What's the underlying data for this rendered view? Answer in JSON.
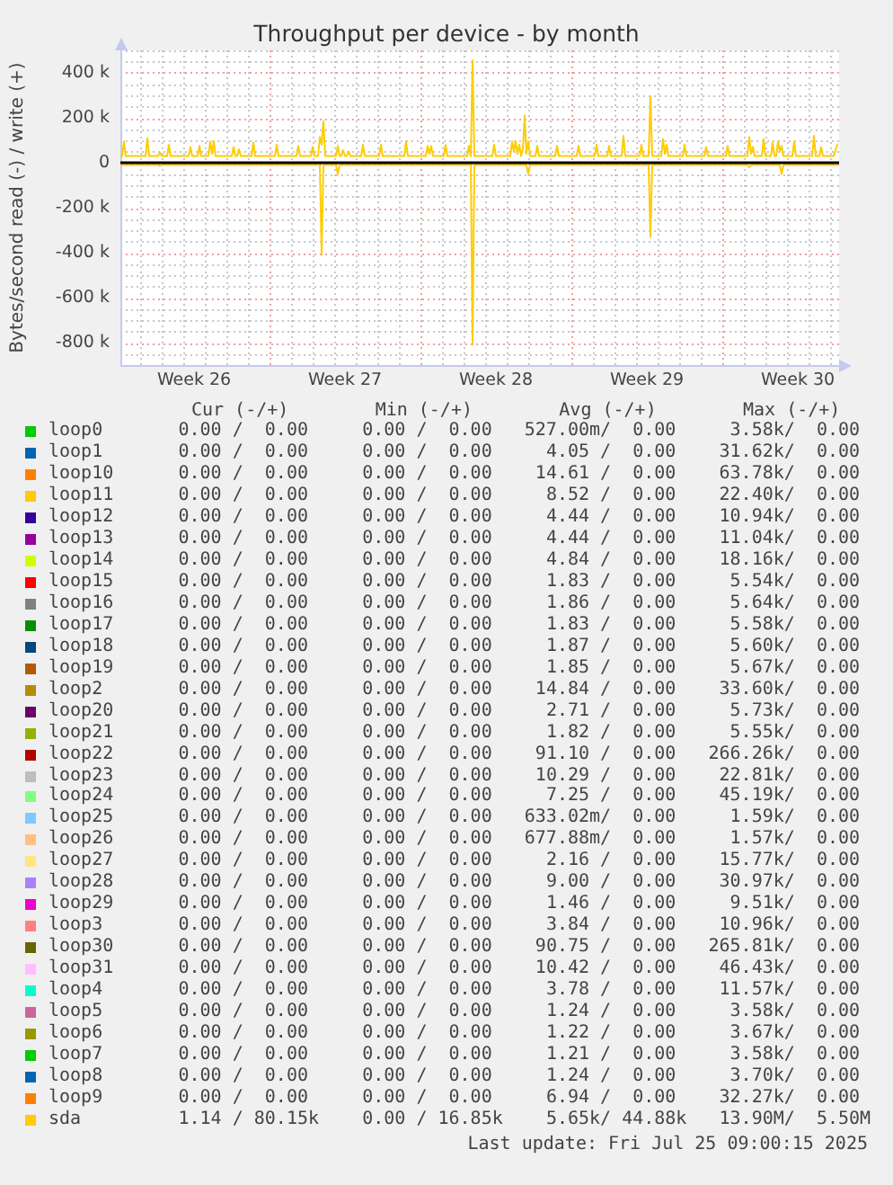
{
  "chart_data": {
    "type": "line",
    "title": "Throughput per device - by month",
    "ylabel": "Bytes/second read (-) / write (+)",
    "xlim": [
      "2025-06-22T02:00",
      "2025-07-25T10:00"
    ],
    "xticks": [
      {
        "value": "2025-06-23",
        "label": null
      },
      {
        "value": "2025-06-24",
        "label": null
      },
      {
        "value": "2025-06-25",
        "label": null
      },
      {
        "value": "2025-06-25T12:00",
        "label": "Week 26"
      },
      {
        "value": "2025-06-26",
        "label": null
      },
      {
        "value": "2025-06-27",
        "label": null
      },
      {
        "value": "2025-06-28",
        "label": null
      },
      {
        "value": "2025-06-29",
        "label": null
      },
      {
        "value": "2025-06-30",
        "label": null
      },
      {
        "value": "2025-07-01",
        "label": null
      },
      {
        "value": "2025-07-02",
        "label": null
      },
      {
        "value": "2025-07-02T12:00",
        "label": "Week 27"
      },
      {
        "value": "2025-07-03",
        "label": null
      },
      {
        "value": "2025-07-04",
        "label": null
      },
      {
        "value": "2025-07-05",
        "label": null
      },
      {
        "value": "2025-07-06",
        "label": null
      },
      {
        "value": "2025-07-07",
        "label": null
      },
      {
        "value": "2025-07-08",
        "label": null
      },
      {
        "value": "2025-07-09",
        "label": null
      },
      {
        "value": "2025-07-09T12:00",
        "label": "Week 28"
      },
      {
        "value": "2025-07-10",
        "label": null
      },
      {
        "value": "2025-07-11",
        "label": null
      },
      {
        "value": "2025-07-12",
        "label": null
      },
      {
        "value": "2025-07-13",
        "label": null
      },
      {
        "value": "2025-07-14",
        "label": null
      },
      {
        "value": "2025-07-15",
        "label": null
      },
      {
        "value": "2025-07-16",
        "label": null
      },
      {
        "value": "2025-07-16T12:00",
        "label": "Week 29"
      },
      {
        "value": "2025-07-17",
        "label": null
      },
      {
        "value": "2025-07-18",
        "label": null
      },
      {
        "value": "2025-07-19",
        "label": null
      },
      {
        "value": "2025-07-20",
        "label": null
      },
      {
        "value": "2025-07-21",
        "label": null
      },
      {
        "value": "2025-07-22",
        "label": null
      },
      {
        "value": "2025-07-23",
        "label": null
      },
      {
        "value": "2025-07-23T12:00",
        "label": "Week 30"
      },
      {
        "value": "2025-07-24",
        "label": null
      },
      {
        "value": "2025-07-25",
        "label": null
      }
    ],
    "ylim": [
      -900000,
      500000
    ],
    "yticks": [
      {
        "value": -900000,
        "label": null
      },
      {
        "value": -850000,
        "label": null
      },
      {
        "value": -800000,
        "label": "-800 k"
      },
      {
        "value": -750000,
        "label": null
      },
      {
        "value": -700000,
        "label": null
      },
      {
        "value": -650000,
        "label": null
      },
      {
        "value": -600000,
        "label": "-600 k"
      },
      {
        "value": -550000,
        "label": null
      },
      {
        "value": -500000,
        "label": null
      },
      {
        "value": -450000,
        "label": null
      },
      {
        "value": -400000,
        "label": "-400 k"
      },
      {
        "value": -350000,
        "label": null
      },
      {
        "value": -300000,
        "label": null
      },
      {
        "value": -250000,
        "label": null
      },
      {
        "value": -200000,
        "label": "-200 k"
      },
      {
        "value": -150000,
        "label": null
      },
      {
        "value": -100000,
        "label": null
      },
      {
        "value": -50000,
        "label": null
      },
      0,
      {
        "value": 50000,
        "label": null
      },
      {
        "value": 100000,
        "label": null
      },
      {
        "value": 150000,
        "label": null
      },
      {
        "value": 200000,
        "label": "200 k"
      },
      {
        "value": 250000,
        "label": null
      },
      {
        "value": 300000,
        "label": null
      },
      {
        "value": 350000,
        "label": null
      },
      {
        "value": 400000,
        "label": "400 k"
      },
      {
        "value": 450000,
        "label": null
      },
      {
        "value": 500000,
        "label": null
      }
    ],
    "grid": true,
    "legend": "bottom",
    "ref_lines": [
      {
        "axis": "y",
        "value": 0,
        "color": "#000000"
      }
    ],
    "series": [
      {
        "name": "loop0",
        "color": "#00cc00"
      },
      {
        "name": "loop1",
        "color": "#0066b3"
      },
      {
        "name": "loop10",
        "color": "#ff8000"
      },
      {
        "name": "loop11",
        "color": "#ffcc00"
      },
      {
        "name": "loop12",
        "color": "#330099"
      },
      {
        "name": "loop13",
        "color": "#990099"
      },
      {
        "name": "loop14",
        "color": "#ccff00"
      },
      {
        "name": "loop15",
        "color": "#ff0000"
      },
      {
        "name": "loop16",
        "color": "#808080"
      },
      {
        "name": "loop17",
        "color": "#008f00"
      },
      {
        "name": "loop18",
        "color": "#00487d"
      },
      {
        "name": "loop19",
        "color": "#b35a00"
      },
      {
        "name": "loop2",
        "color": "#b38f00"
      },
      {
        "name": "loop20",
        "color": "#6b006b"
      },
      {
        "name": "loop21",
        "color": "#8fb300"
      },
      {
        "name": "loop22",
        "color": "#b30000"
      },
      {
        "name": "loop23",
        "color": "#bebebe"
      },
      {
        "name": "loop24",
        "color": "#80ff80"
      },
      {
        "name": "loop25",
        "color": "#80c9ff"
      },
      {
        "name": "loop26",
        "color": "#ffc080"
      },
      {
        "name": "loop27",
        "color": "#ffe680"
      },
      {
        "name": "loop28",
        "color": "#aa80ff"
      },
      {
        "name": "loop29",
        "color": "#ee00cc"
      },
      {
        "name": "loop3",
        "color": "#ff8080"
      },
      {
        "name": "loop30",
        "color": "#666600"
      },
      {
        "name": "loop31",
        "color": "#ffbfff"
      },
      {
        "name": "loop4",
        "color": "#00ffcc"
      },
      {
        "name": "loop5",
        "color": "#cc6699"
      },
      {
        "name": "loop6",
        "color": "#999900"
      },
      {
        "name": "loop7",
        "color": "#00cc00"
      },
      {
        "name": "loop8",
        "color": "#0066b3"
      },
      {
        "name": "loop9",
        "color": "#ff8000"
      },
      {
        "name": "sda",
        "color": "#ffcc00",
        "x": [
          "2025-06-22T02:00",
          "2025-06-22T04:00",
          "2025-06-22T06:00",
          "2025-06-22T08:00",
          "2025-06-23T06:00",
          "2025-06-23T08:00",
          "2025-06-23T10:00",
          "2025-06-23T20:00",
          "2025-06-23T22:00",
          "2025-06-24T00:00",
          "2025-06-24T06:00",
          "2025-06-24T08:00",
          "2025-06-24T10:00",
          "2025-06-25T06:00",
          "2025-06-25T08:00",
          "2025-06-25T10:00",
          "2025-06-25T16:00",
          "2025-06-25T18:00",
          "2025-06-25T20:00",
          "2025-06-26T04:00",
          "2025-06-26T06:00",
          "2025-06-26T08:00",
          "2025-06-26T10:00",
          "2025-06-26T12:00",
          "2025-06-27T06:00",
          "2025-06-27T08:00",
          "2025-06-27T10:00",
          "2025-06-27T12:00",
          "2025-06-27T14:00",
          "2025-06-27T16:00",
          "2025-06-28T04:00",
          "2025-06-28T06:00",
          "2025-06-28T08:00",
          "2025-06-29T06:00",
          "2025-06-29T08:00",
          "2025-06-29T10:00",
          "2025-06-30T06:00",
          "2025-06-30T08:00",
          "2025-06-30T10:00",
          "2025-06-30T22:00",
          "2025-07-01T00:00",
          "2025-07-01T02:00",
          "2025-07-01T06:00",
          "2025-07-01T08:00",
          "2025-07-01T10:00",
          "2025-07-01T12:00",
          "2025-07-01T14:00",
          "2025-07-02T02:00",
          "2025-07-02T04:00",
          "2025-07-02T06:00",
          "2025-07-02T08:00",
          "2025-07-02T10:00",
          "2025-07-02T12:00",
          "2025-07-02T14:00",
          "2025-07-02T16:00",
          "2025-07-02T18:00",
          "2025-07-03T06:00",
          "2025-07-03T08:00",
          "2025-07-03T10:00",
          "2025-07-04T02:00",
          "2025-07-04T04:00",
          "2025-07-04T06:00",
          "2025-07-05T06:00",
          "2025-07-05T08:00",
          "2025-07-05T10:00",
          "2025-07-06T06:00",
          "2025-07-06T08:00",
          "2025-07-06T10:00",
          "2025-07-06T12:00",
          "2025-07-06T14:00",
          "2025-07-07T02:00",
          "2025-07-07T04:00",
          "2025-07-07T06:00",
          "2025-07-08T04:00",
          "2025-07-08T06:00",
          "2025-07-08T08:00",
          "2025-07-08T10:00",
          "2025-07-08T12:00",
          "2025-07-09T08:00",
          "2025-07-09T10:00",
          "2025-07-09T12:00",
          "2025-07-10T04:00",
          "2025-07-10T06:00",
          "2025-07-10T08:00",
          "2025-07-10T10:00",
          "2025-07-10T12:00",
          "2025-07-10T14:00",
          "2025-07-10T16:00",
          "2025-07-10T18:00",
          "2025-07-10T20:00",
          "2025-07-10T22:00",
          "2025-07-11T00:00",
          "2025-07-11T02:00",
          "2025-07-11T08:00",
          "2025-07-11T10:00",
          "2025-07-11T12:00",
          "2025-07-12T06:00",
          "2025-07-12T08:00",
          "2025-07-12T10:00",
          "2025-07-13T06:00",
          "2025-07-13T08:00",
          "2025-07-13T10:00",
          "2025-07-14T02:00",
          "2025-07-14T04:00",
          "2025-07-14T06:00",
          "2025-07-14T16:00",
          "2025-07-14T18:00",
          "2025-07-14T20:00",
          "2025-07-15T08:00",
          "2025-07-15T10:00",
          "2025-07-15T12:00",
          "2025-07-16T04:00",
          "2025-07-16T06:00",
          "2025-07-16T08:00",
          "2025-07-16T14:00",
          "2025-07-16T16:00",
          "2025-07-16T18:00",
          "2025-07-17T04:00",
          "2025-07-17T06:00",
          "2025-07-17T08:00",
          "2025-07-17T10:00",
          "2025-07-17T12:00",
          "2025-07-18T04:00",
          "2025-07-18T06:00",
          "2025-07-18T08:00",
          "2025-07-19T04:00",
          "2025-07-19T06:00",
          "2025-07-19T08:00",
          "2025-07-20T04:00",
          "2025-07-20T06:00",
          "2025-07-20T08:00",
          "2025-07-21T04:00",
          "2025-07-21T06:00",
          "2025-07-21T08:00",
          "2025-07-21T10:00",
          "2025-07-21T12:00",
          "2025-07-21T20:00",
          "2025-07-21T22:00",
          "2025-07-22T00:00",
          "2025-07-22T06:00",
          "2025-07-22T08:00",
          "2025-07-22T10:00",
          "2025-07-22T12:00",
          "2025-07-22T14:00",
          "2025-07-22T16:00",
          "2025-07-22T18:00",
          "2025-07-22T20:00",
          "2025-07-23T06:00",
          "2025-07-23T08:00",
          "2025-07-23T10:00",
          "2025-07-24T04:00",
          "2025-07-24T06:00",
          "2025-07-24T08:00",
          "2025-07-24T12:00",
          "2025-07-24T14:00",
          "2025-07-24T16:00",
          "2025-07-25T04:00",
          "2025-07-25T08:00"
        ],
        "values": [
          30000,
          30000,
          95000,
          30000,
          30000,
          110000,
          30000,
          30000,
          45000,
          30000,
          30000,
          80000,
          30000,
          30000,
          70000,
          30000,
          30000,
          75000,
          30000,
          30000,
          95000,
          40000,
          95000,
          30000,
          30000,
          70000,
          30000,
          30000,
          60000,
          30000,
          30000,
          90000,
          30000,
          30000,
          80000,
          30000,
          30000,
          75000,
          30000,
          30000,
          70000,
          30000,
          30000,
          115000,
          80000,
          185000,
          30000,
          30000,
          75000,
          30000,
          30000,
          55000,
          30000,
          30000,
          50000,
          30000,
          30000,
          80000,
          30000,
          30000,
          80000,
          30000,
          30000,
          95000,
          30000,
          30000,
          75000,
          40000,
          75000,
          30000,
          30000,
          80000,
          30000,
          30000,
          75000,
          30000,
          455000,
          30000,
          30000,
          80000,
          30000,
          30000,
          95000,
          50000,
          95000,
          40000,
          80000,
          30000,
          60000,
          210000,
          40000,
          95000,
          30000,
          30000,
          75000,
          30000,
          30000,
          75000,
          30000,
          30000,
          75000,
          30000,
          30000,
          80000,
          30000,
          30000,
          75000,
          30000,
          30000,
          120000,
          30000,
          30000,
          80000,
          30000,
          30000,
          295000,
          30000,
          30000,
          105000,
          40000,
          80000,
          30000,
          30000,
          80000,
          30000,
          30000,
          70000,
          30000,
          30000,
          75000,
          30000,
          30000,
          115000,
          40000,
          70000,
          30000,
          30000,
          105000,
          30000,
          30000,
          90000,
          30000,
          30000,
          95000,
          50000,
          75000,
          30000,
          30000,
          95000,
          30000,
          30000,
          120000,
          30000,
          30000,
          70000,
          30000,
          30000,
          80000
        ]
      },
      {
        "color": "#ffcc00",
        "x": [
          "2025-06-22T02:00",
          "2025-06-23T20:00",
          "2025-06-23T22:00",
          "2025-06-24T00:00",
          "2025-07-01T08:00",
          "2025-07-01T10:00",
          "2025-07-01T12:00",
          "2025-07-02T02:00",
          "2025-07-02T04:00",
          "2025-07-02T06:00",
          "2025-07-08T08:00",
          "2025-07-08T10:00",
          "2025-07-08T12:00",
          "2025-07-10T22:00",
          "2025-07-11T00:00",
          "2025-07-11T02:00",
          "2025-07-16T14:00",
          "2025-07-16T16:00",
          "2025-07-16T18:00",
          "2025-07-21T04:00",
          "2025-07-21T06:00",
          "2025-07-21T08:00",
          "2025-07-22T16:00",
          "2025-07-22T18:00",
          "2025-07-22T20:00",
          "2025-07-25T08:00"
        ],
        "values": [
          -10000,
          -10000,
          -15000,
          -10000,
          -10000,
          -410000,
          -10000,
          -10000,
          -50000,
          -10000,
          -10000,
          -810000,
          -10000,
          -10000,
          -50000,
          -10000,
          -10000,
          -330000,
          -10000,
          -10000,
          -20000,
          -10000,
          -10000,
          -50000,
          -10000,
          -10000
        ]
      }
    ],
    "annotations": [
      "Cur (-/+)",
      "Min (-/+)",
      "Avg (-/+)",
      "Max (-/+)",
      "0.00 /  0.00",
      "0.00 /  0.00",
      "527.00m/  0.00",
      "3.58k/  0.00",
      "0.00 /  0.00",
      "0.00 /  0.00",
      "4.05 /  0.00",
      "31.62k/  0.00",
      "0.00 /  0.00",
      "0.00 /  0.00",
      "14.61 /  0.00",
      "63.78k/  0.00",
      "0.00 /  0.00",
      "0.00 /  0.00",
      "8.52 /  0.00",
      "22.40k/  0.00",
      "0.00 /  0.00",
      "0.00 /  0.00",
      "4.44 /  0.00",
      "10.94k/  0.00",
      "0.00 /  0.00",
      "0.00 /  0.00",
      "4.44 /  0.00",
      "11.04k/  0.00",
      "0.00 /  0.00",
      "0.00 /  0.00",
      "4.84 /  0.00",
      "18.16k/  0.00",
      "0.00 /  0.00",
      "0.00 /  0.00",
      "1.83 /  0.00",
      "5.54k/  0.00",
      "0.00 /  0.00",
      "0.00 /  0.00",
      "1.86 /  0.00",
      "5.64k/  0.00",
      "0.00 /  0.00",
      "0.00 /  0.00",
      "1.83 /  0.00",
      "5.58k/  0.00",
      "0.00 /  0.00",
      "0.00 /  0.00",
      "1.87 /  0.00",
      "5.60k/  0.00",
      "0.00 /  0.00",
      "0.00 /  0.00",
      "1.85 /  0.00",
      "5.67k/  0.00",
      "0.00 /  0.00",
      "0.00 /  0.00",
      "14.84 /  0.00",
      "33.60k/  0.00",
      "0.00 /  0.00",
      "0.00 /  0.00",
      "2.71 /  0.00",
      "5.73k/  0.00",
      "0.00 /  0.00",
      "0.00 /  0.00",
      "1.82 /  0.00",
      "5.55k/  0.00",
      "0.00 /  0.00",
      "0.00 /  0.00",
      "91.10 /  0.00",
      "266.26k/  0.00",
      "0.00 /  0.00",
      "0.00 /  0.00",
      "10.29 /  0.00",
      "22.81k/  0.00",
      "0.00 /  0.00",
      "0.00 /  0.00",
      "7.25 /  0.00",
      "45.19k/  0.00",
      "0.00 /  0.00",
      "0.00 /  0.00",
      "633.02m/  0.00",
      "1.59k/  0.00",
      "0.00 /  0.00",
      "0.00 /  0.00",
      "677.88m/  0.00",
      "1.57k/  0.00",
      "0.00 /  0.00",
      "0.00 /  0.00",
      "2.16 /  0.00",
      "15.77k/  0.00",
      "0.00 /  0.00",
      "0.00 /  0.00",
      "9.00 /  0.00",
      "30.97k/  0.00",
      "0.00 /  0.00",
      "0.00 /  0.00",
      "1.46 /  0.00",
      "9.51k/  0.00",
      "0.00 /  0.00",
      "0.00 /  0.00",
      "3.84 /  0.00",
      "10.96k/  0.00",
      "0.00 /  0.00",
      "0.00 /  0.00",
      "90.75 /  0.00",
      "265.81k/  0.00",
      "0.00 /  0.00",
      "0.00 /  0.00",
      "10.42 /  0.00",
      "46.43k/  0.00",
      "0.00 /  0.00",
      "0.00 /  0.00",
      "3.78 /  0.00",
      "11.57k/  0.00",
      "0.00 /  0.00",
      "0.00 /  0.00",
      "1.24 /  0.00",
      "3.58k/  0.00",
      "0.00 /  0.00",
      "0.00 /  0.00",
      "1.22 /  0.00",
      "3.67k/  0.00",
      "0.00 /  0.00",
      "0.00 /  0.00",
      "1.21 /  0.00",
      "3.58k/  0.00",
      "0.00 /  0.00",
      "0.00 /  0.00",
      "1.24 /  0.00",
      "3.70k/  0.00",
      "0.00 /  0.00",
      "0.00 /  0.00",
      "6.94 /  0.00",
      "32.27k/  0.00",
      "1.14 / 80.15k",
      "0.00 / 16.85k",
      "5.65k/ 44.88k",
      "13.90M/  5.50M",
      "Last update: Fri Jul 25 09:00:15 2025"
    ]
  }
}
